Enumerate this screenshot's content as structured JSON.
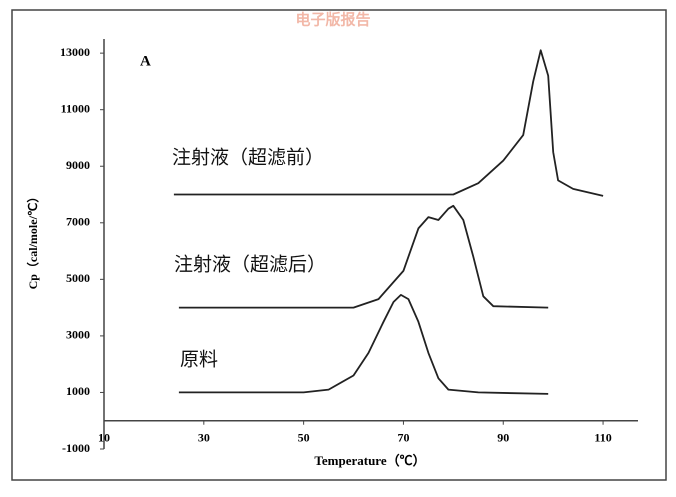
{
  "chart_data": {
    "type": "line",
    "watermark": "电子版报告",
    "panel_label": "A",
    "xlabel": "Temperature（℃）",
    "ylabel": "Cp（cal/mole/℃）",
    "xlim": [
      10,
      117
    ],
    "ylim": [
      -1000,
      13500
    ],
    "xticks": [
      10,
      30,
      50,
      70,
      90,
      110
    ],
    "yticks": [
      -1000,
      1000,
      3000,
      5000,
      7000,
      9000,
      11000,
      13000
    ],
    "series": [
      {
        "name": "注射液（超滤前）",
        "color": "#222222",
        "x": [
          24,
          50,
          80,
          85,
          90,
          94,
          96,
          97.5,
          99,
          100,
          101,
          104,
          110
        ],
        "values": [
          8000,
          8000,
          8000,
          8400,
          9200,
          10100,
          12000,
          13100,
          12200,
          9500,
          8500,
          8200,
          7950
        ]
      },
      {
        "name": "注射液（超滤后）",
        "color": "#222222",
        "x": [
          25,
          60,
          65,
          70,
          73,
          75,
          77,
          79,
          80,
          82,
          84,
          86,
          88,
          99
        ],
        "values": [
          4000,
          4000,
          4300,
          5300,
          6800,
          7200,
          7100,
          7500,
          7600,
          7100,
          5800,
          4400,
          4050,
          4000
        ]
      },
      {
        "name": "原料",
        "color": "#222222",
        "x": [
          25,
          50,
          55,
          60,
          63,
          66,
          68,
          69.5,
          71,
          73,
          75,
          77,
          79,
          85,
          99
        ],
        "values": [
          1000,
          1000,
          1100,
          1600,
          2400,
          3500,
          4200,
          4450,
          4300,
          3500,
          2400,
          1500,
          1100,
          1000,
          950
        ]
      }
    ]
  }
}
